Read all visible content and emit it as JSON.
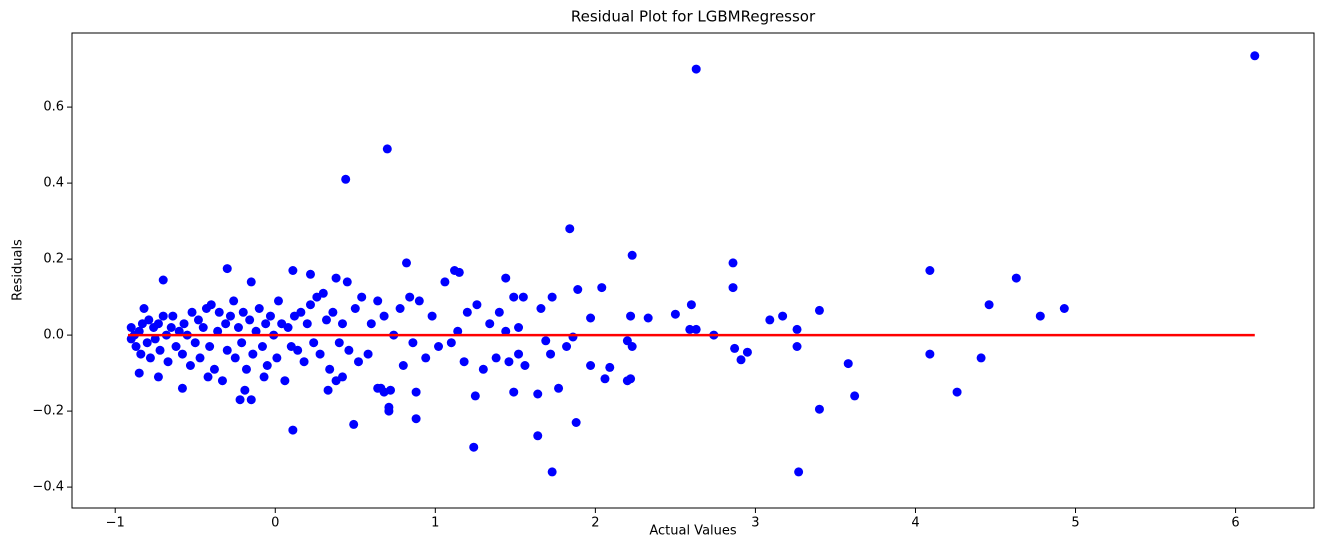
{
  "chart_data": {
    "type": "scatter",
    "title": "Residual Plot for LGBMRegressor",
    "x_label": "Actual Values",
    "y_label": "Residuals",
    "xlim": [
      -1.27,
      6.49
    ],
    "ylim": [
      -0.455,
      0.795
    ],
    "xticks": [
      {
        "value": -1,
        "label": "−1"
      },
      0,
      1,
      2,
      3,
      4,
      5,
      6
    ],
    "yticks": [
      {
        "value": -0.4,
        "label": "−0.4"
      },
      {
        "value": -0.2,
        "label": "−0.2"
      },
      {
        "value": 0,
        "label": "0.0"
      },
      0.2,
      0.4,
      0.6
    ],
    "points": {
      "color": "#0000ff",
      "x": [
        6.12,
        2.63,
        0.7,
        0.44,
        1.84,
        2.23,
        2.86,
        0.82,
        4.09,
        4.63,
        -0.7,
        -0.3,
        0.11,
        0.22,
        1.12,
        1.15,
        1.44,
        0.38,
        0.45,
        -0.15,
        1.89,
        2.04,
        2.86,
        4.46,
        4.93,
        4.78,
        3.4,
        3.17,
        3.09,
        2.6,
        2.5,
        2.33,
        2.22,
        1.97,
        1.66,
        1.73,
        1.55,
        1.49,
        2.63,
        2.59,
        2.74,
        3.26,
        2.87,
        2.91,
        2.95,
        3.26,
        3.58,
        3.4,
        3.62,
        3.27,
        4.09,
        4.41,
        4.26,
        1.73,
        1.24,
        1.64,
        1.88,
        0.49,
        0.11,
        0.71,
        0.71,
        0.88,
        1.25,
        1.49,
        1.64,
        1.77,
        2.22,
        2.06,
        2.2,
        2.09,
        1.97,
        2.2,
        2.23,
        1.82,
        1.69,
        1.86,
        1.72,
        -0.22,
        -0.15,
        -0.19,
        -0.07,
        -0.42,
        -0.73,
        -0.85,
        -0.58,
        0.66,
        0.68,
        0.72,
        0.88,
        0.64,
        0.38,
        0.42,
        0.33,
        -0.9,
        -0.9,
        -0.88,
        -0.87,
        -0.85,
        -0.84,
        -0.83,
        -0.82,
        -0.8,
        -0.79,
        -0.78,
        -0.76,
        -0.75,
        -0.73,
        -0.72,
        -0.7,
        -0.68,
        -0.67,
        -0.65,
        -0.64,
        -0.62,
        -0.6,
        -0.58,
        -0.57,
        -0.55,
        -0.53,
        -0.52,
        -0.5,
        -0.48,
        -0.47,
        -0.45,
        -0.43,
        -0.41,
        -0.4,
        -0.38,
        -0.36,
        -0.35,
        -0.33,
        -0.31,
        -0.3,
        -0.28,
        -0.26,
        -0.25,
        -0.23,
        -0.21,
        -0.2,
        -0.18,
        -0.16,
        -0.14,
        -0.12,
        -0.1,
        -0.08,
        -0.06,
        -0.05,
        -0.03,
        -0.01,
        0.01,
        0.02,
        0.04,
        0.06,
        0.08,
        0.1,
        0.12,
        0.14,
        0.16,
        0.18,
        0.2,
        0.22,
        0.24,
        0.26,
        0.28,
        0.3,
        0.32,
        0.34,
        0.36,
        0.4,
        0.42,
        0.46,
        0.5,
        0.52,
        0.54,
        0.58,
        0.6,
        0.64,
        0.68,
        0.74,
        0.78,
        0.8,
        0.84,
        0.86,
        0.9,
        0.94,
        0.98,
        1.02,
        1.06,
        1.1,
        1.14,
        1.18,
        1.2,
        1.26,
        1.3,
        1.34,
        1.38,
        1.4,
        1.44,
        1.46,
        1.52,
        1.52,
        1.56
      ],
      "values": [
        0.735,
        0.7,
        0.49,
        0.41,
        0.28,
        0.21,
        0.19,
        0.19,
        0.17,
        0.15,
        0.145,
        0.175,
        0.17,
        0.16,
        0.17,
        0.165,
        0.15,
        0.15,
        0.14,
        0.14,
        0.12,
        0.125,
        0.125,
        0.08,
        0.07,
        0.05,
        0.065,
        0.05,
        0.04,
        0.08,
        0.055,
        0.045,
        0.05,
        0.045,
        0.07,
        0.1,
        0.1,
        0.1,
        0.015,
        0.015,
        0.0,
        0.015,
        -0.035,
        -0.065,
        -0.045,
        -0.03,
        -0.075,
        -0.195,
        -0.16,
        -0.36,
        -0.05,
        -0.06,
        -0.15,
        -0.36,
        -0.295,
        -0.265,
        -0.23,
        -0.235,
        -0.25,
        -0.19,
        -0.2,
        -0.22,
        -0.16,
        -0.15,
        -0.155,
        -0.14,
        -0.115,
        -0.115,
        -0.12,
        -0.085,
        -0.08,
        -0.015,
        -0.03,
        -0.03,
        -0.015,
        -0.005,
        -0.05,
        -0.17,
        -0.17,
        -0.145,
        -0.11,
        -0.11,
        -0.11,
        -0.1,
        -0.14,
        -0.14,
        -0.15,
        -0.145,
        -0.15,
        -0.14,
        -0.12,
        -0.11,
        -0.145,
        0.02,
        -0.01,
        0.0,
        -0.03,
        0.01,
        -0.05,
        0.03,
        0.07,
        -0.02,
        0.04,
        -0.06,
        0.02,
        -0.01,
        0.03,
        -0.04,
        0.05,
        0.0,
        -0.07,
        0.02,
        0.05,
        -0.03,
        0.01,
        -0.05,
        0.03,
        0.0,
        -0.08,
        0.06,
        -0.02,
        0.04,
        -0.06,
        0.02,
        0.07,
        -0.03,
        0.08,
        -0.09,
        0.01,
        0.06,
        -0.12,
        0.03,
        -0.04,
        0.05,
        0.09,
        -0.06,
        0.02,
        -0.02,
        0.06,
        -0.09,
        0.04,
        -0.05,
        0.01,
        0.07,
        -0.03,
        0.03,
        -0.08,
        0.05,
        0.0,
        -0.06,
        0.09,
        0.03,
        -0.12,
        0.02,
        -0.03,
        0.05,
        -0.04,
        0.06,
        -0.07,
        0.03,
        0.08,
        -0.02,
        0.1,
        -0.05,
        0.11,
        0.04,
        -0.09,
        0.06,
        -0.02,
        0.03,
        -0.04,
        0.07,
        -0.07,
        0.1,
        -0.05,
        0.03,
        0.09,
        0.05,
        0.0,
        0.07,
        -0.08,
        0.1,
        -0.02,
        0.09,
        -0.06,
        0.05,
        -0.03,
        0.14,
        -0.02,
        0.01,
        -0.07,
        0.06,
        0.08,
        -0.09,
        0.03,
        -0.06,
        0.06,
        0.01,
        -0.07,
        0.02,
        -0.05,
        -0.08
      ]
    },
    "line": {
      "color": "#ff0000",
      "x": [
        -0.92,
        6.12
      ],
      "values": [
        0,
        0
      ]
    }
  }
}
